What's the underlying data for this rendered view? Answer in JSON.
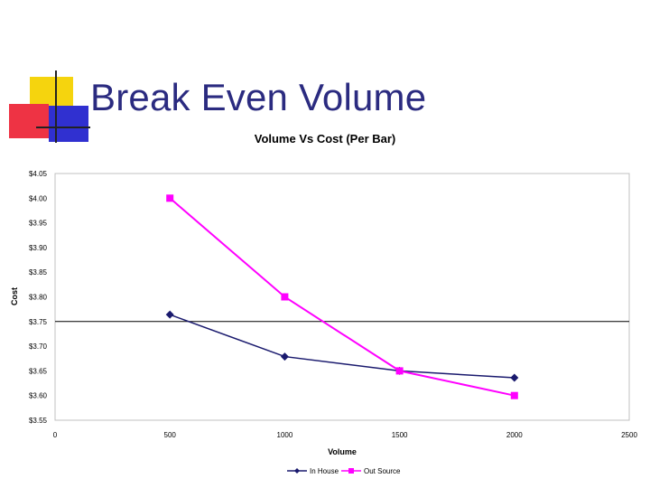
{
  "slide": {
    "title": "Break Even Volume"
  },
  "colors": {
    "title_text": "#2b2b80",
    "deco_yellow": "#f5d40e",
    "deco_red": "#ee3344",
    "deco_blue": "#3030d0",
    "in_house": "#1a1a6e",
    "out_source": "#ff00ff",
    "plot_border": "#c0c0c0"
  },
  "chart_data": {
    "type": "line",
    "title": "Volume Vs Cost (Per Bar)",
    "xlabel": "Volume",
    "ylabel": "Cost",
    "xlim": [
      0,
      2500
    ],
    "ylim": [
      3.55,
      4.05
    ],
    "x_ticks": [
      "0",
      "500",
      "1000",
      "1500",
      "2000",
      "2500"
    ],
    "y_ticks": [
      "$4.05",
      "$4.00",
      "$3.95",
      "$3.90",
      "$3.85",
      "$3.80",
      "$3.75",
      "$3.70",
      "$3.65",
      "$3.60",
      "$3.55"
    ],
    "x_tick_values": [
      0,
      500,
      1000,
      1500,
      2000,
      2500
    ],
    "y_tick_values": [
      4.05,
      4.0,
      3.95,
      3.9,
      3.85,
      3.8,
      3.75,
      3.7,
      3.65,
      3.6,
      3.55
    ],
    "reference_line": 3.75,
    "grid": false,
    "legend_position": "bottom",
    "series": [
      {
        "name": "In House",
        "marker": "diamond",
        "color": "#1a1a6e",
        "x": [
          500,
          1000,
          1500,
          2000
        ],
        "y": [
          3.764,
          3.679,
          3.65,
          3.636
        ]
      },
      {
        "name": "Out Source",
        "marker": "square",
        "color": "#ff00ff",
        "x": [
          500,
          1000,
          1500,
          2000
        ],
        "y": [
          4.0,
          3.8,
          3.65,
          3.6
        ]
      }
    ]
  }
}
